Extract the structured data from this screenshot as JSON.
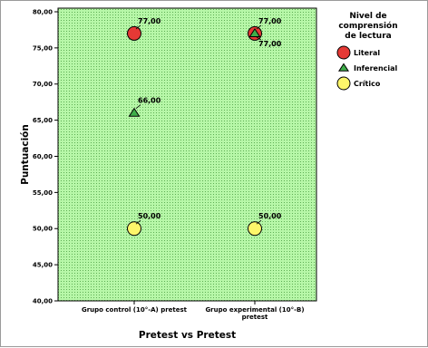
{
  "chart_data": {
    "type": "scatter",
    "title": "",
    "xlabel": "Pretest vs Pretest",
    "ylabel": "Puntuación",
    "categories": [
      "Grupo control (10°-A) pretest",
      "Grupo experimental (10°-B) pretest"
    ],
    "ylim": [
      40,
      80.5
    ],
    "yticks": [
      40,
      45,
      50,
      55,
      60,
      65,
      70,
      75,
      80
    ],
    "ytick_labels": [
      "40,00",
      "45,00",
      "50,00",
      "55,00",
      "60,00",
      "65,00",
      "70,00",
      "75,00",
      "80,00"
    ],
    "grid": false,
    "plot_background": "#b7f7a8",
    "legend": {
      "title": "Nivel de comprensión de lectura",
      "title_lines": [
        "Nivel de",
        "comprensión",
        "de lectura"
      ],
      "placement": "right"
    },
    "series": [
      {
        "name": "Literal",
        "marker": "circle",
        "color": "#e53935",
        "values": [
          77,
          77
        ],
        "labels": [
          "77,00",
          "77,00"
        ]
      },
      {
        "name": "Inferencial",
        "marker": "triangle",
        "color": "#3fae4a",
        "values": [
          66,
          77
        ],
        "labels": [
          "66,00",
          "77,00"
        ]
      },
      {
        "name": "Crítico",
        "marker": "circle",
        "color": "#fdf66a",
        "values": [
          50,
          50
        ],
        "labels": [
          "50,00",
          "50,00"
        ]
      }
    ]
  }
}
